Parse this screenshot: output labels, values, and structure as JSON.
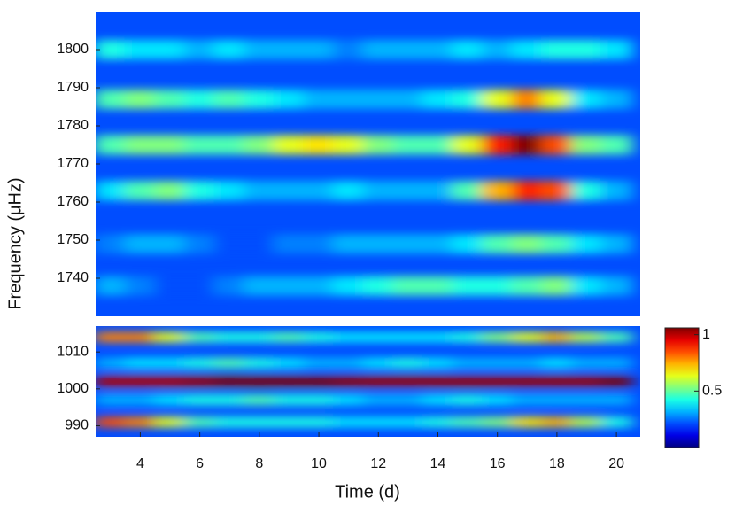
{
  "chart_data": {
    "type": "heatmap",
    "xlabel": "Time (d)",
    "ylabel": "Frequency (μHz)",
    "x": [
      3,
      4,
      5,
      6,
      7,
      8,
      9,
      10,
      11,
      12,
      13,
      14,
      15,
      16,
      17,
      18,
      19,
      20
    ],
    "xlim": [
      2.5,
      20.8
    ],
    "xticks": [
      4,
      6,
      8,
      10,
      12,
      14,
      16,
      18,
      20
    ],
    "panels": [
      {
        "ylim": [
          1730,
          1810
        ],
        "yticks": [
          1740,
          1750,
          1760,
          1770,
          1780,
          1790,
          1800
        ],
        "y": [
          1738,
          1749,
          1763,
          1775,
          1787,
          1800
        ],
        "values": [
          [
            0.3,
            0.25,
            0.2,
            0.2,
            0.25,
            0.3,
            0.3,
            0.3,
            0.35,
            0.4,
            0.45,
            0.45,
            0.4,
            0.4,
            0.45,
            0.5,
            0.35,
            0.3
          ],
          [
            0.25,
            0.3,
            0.3,
            0.25,
            0.2,
            0.2,
            0.25,
            0.25,
            0.3,
            0.3,
            0.3,
            0.3,
            0.35,
            0.45,
            0.5,
            0.45,
            0.35,
            0.3
          ],
          [
            0.35,
            0.45,
            0.5,
            0.4,
            0.35,
            0.3,
            0.3,
            0.3,
            0.35,
            0.3,
            0.3,
            0.3,
            0.45,
            0.7,
            0.85,
            0.8,
            0.4,
            0.3
          ],
          [
            0.45,
            0.5,
            0.5,
            0.45,
            0.45,
            0.5,
            0.6,
            0.65,
            0.6,
            0.5,
            0.45,
            0.45,
            0.6,
            0.85,
            1.0,
            0.8,
            0.5,
            0.45
          ],
          [
            0.45,
            0.5,
            0.45,
            0.4,
            0.45,
            0.4,
            0.35,
            0.3,
            0.3,
            0.3,
            0.3,
            0.35,
            0.4,
            0.6,
            0.75,
            0.6,
            0.35,
            0.3
          ],
          [
            0.4,
            0.35,
            0.35,
            0.3,
            0.35,
            0.3,
            0.3,
            0.3,
            0.25,
            0.3,
            0.3,
            0.3,
            0.35,
            0.3,
            0.35,
            0.4,
            0.4,
            0.35
          ]
        ]
      },
      {
        "ylim": [
          987,
          1017
        ],
        "yticks": [
          990,
          1000,
          1010
        ],
        "y": [
          991,
          997,
          1002,
          1007,
          1014
        ],
        "values": [
          [
            0.8,
            0.75,
            0.6,
            0.45,
            0.4,
            0.4,
            0.4,
            0.4,
            0.35,
            0.35,
            0.35,
            0.4,
            0.45,
            0.5,
            0.65,
            0.7,
            0.55,
            0.4
          ],
          [
            0.3,
            0.3,
            0.35,
            0.4,
            0.4,
            0.45,
            0.4,
            0.4,
            0.35,
            0.3,
            0.3,
            0.35,
            0.4,
            0.35,
            0.3,
            0.3,
            0.3,
            0.3
          ],
          [
            0.95,
            0.95,
            0.95,
            0.97,
            1,
            1,
            1,
            1,
            0.98,
            0.97,
            0.97,
            0.97,
            0.97,
            0.97,
            0.97,
            0.97,
            0.97,
            1
          ],
          [
            0.3,
            0.35,
            0.35,
            0.4,
            0.45,
            0.4,
            0.35,
            0.3,
            0.3,
            0.35,
            0.4,
            0.35,
            0.3,
            0.3,
            0.3,
            0.35,
            0.3,
            0.3
          ],
          [
            0.75,
            0.75,
            0.6,
            0.45,
            0.4,
            0.4,
            0.45,
            0.4,
            0.35,
            0.35,
            0.35,
            0.35,
            0.4,
            0.5,
            0.6,
            0.7,
            0.55,
            0.45
          ]
        ]
      }
    ],
    "colorbar": {
      "lim": [
        0,
        1.06
      ],
      "ticks": [
        0.5,
        1
      ]
    }
  }
}
